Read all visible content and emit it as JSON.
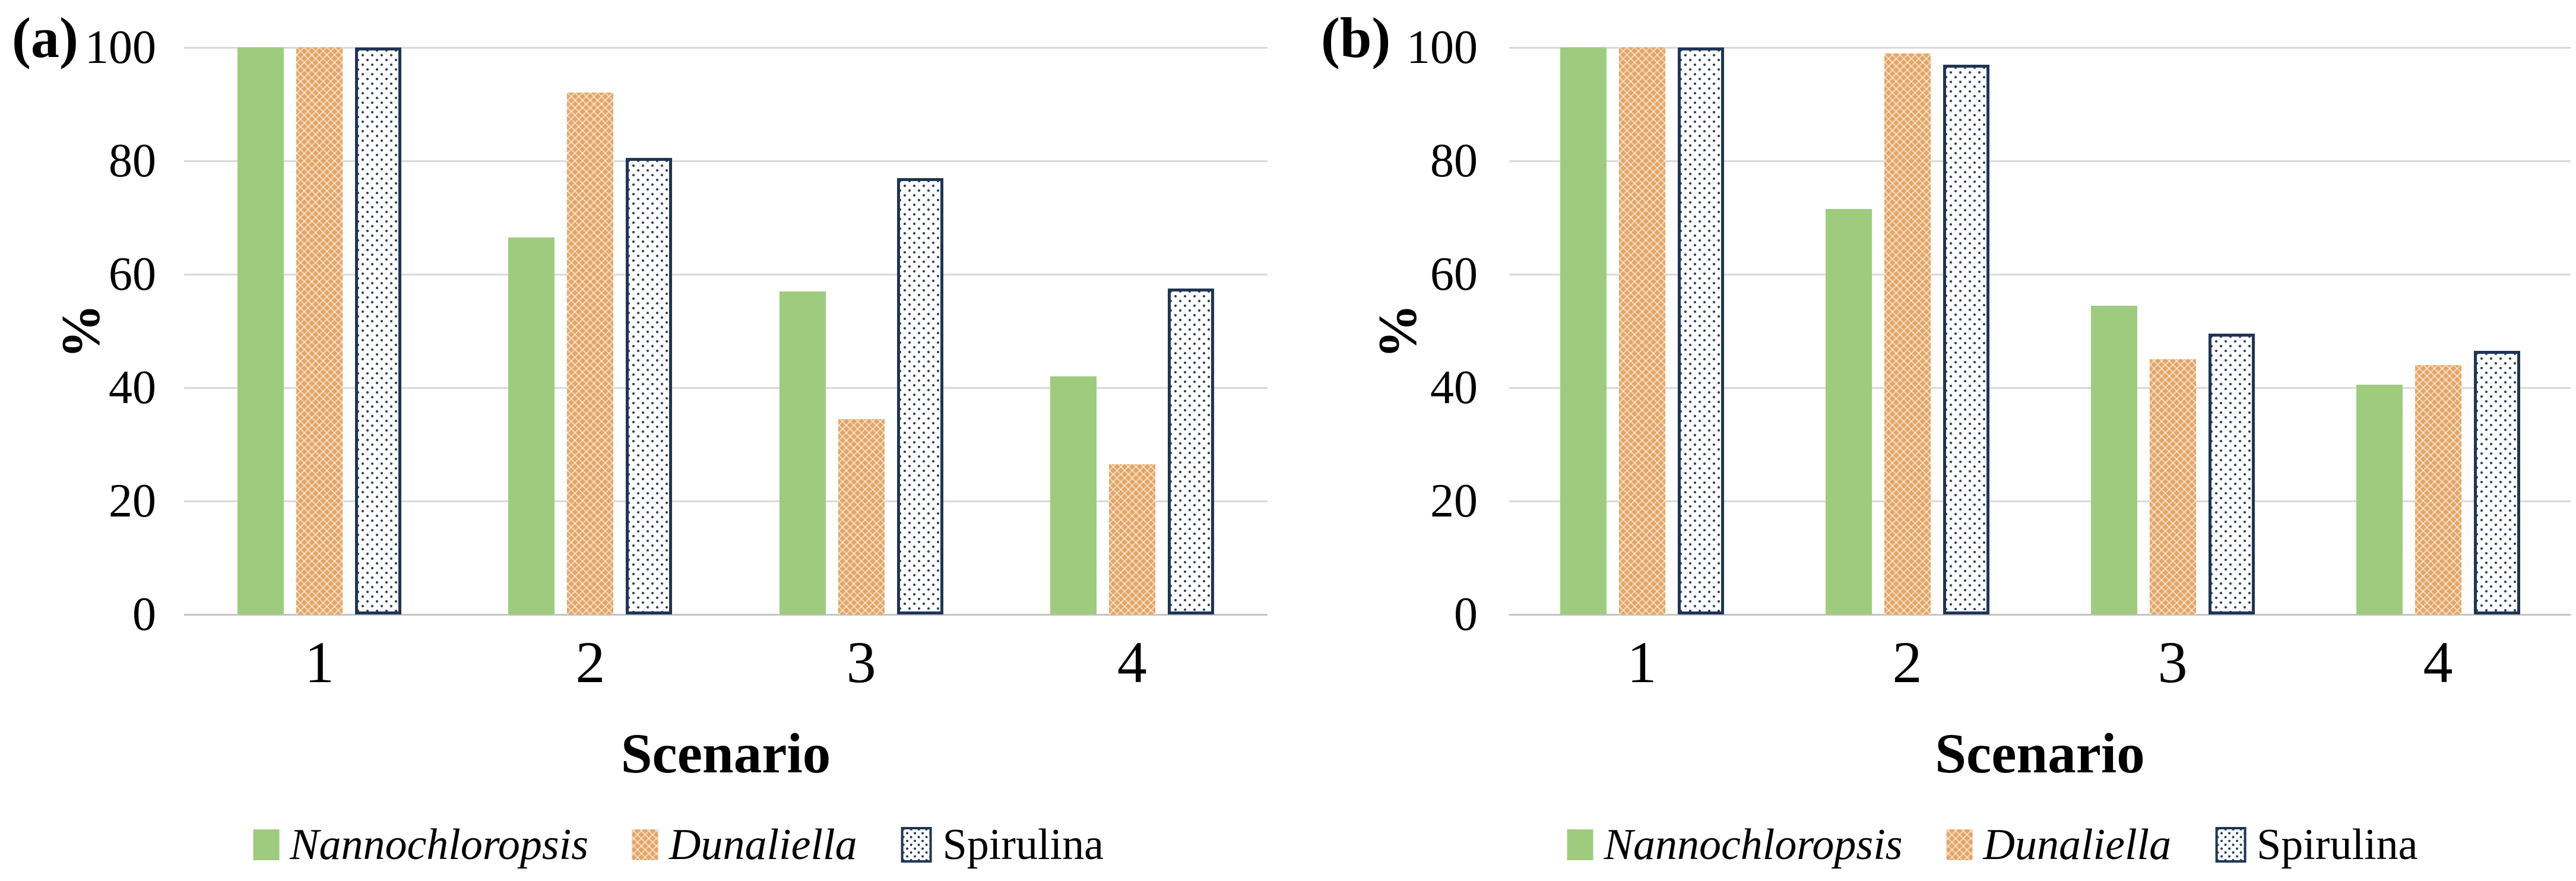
{
  "colors": {
    "nannochloropsis_green": "#9FCB7E",
    "dunaliella_orange": "#E4A667",
    "spirulina_navy": "#1F3555",
    "gridline_gray": "#D9D9D9",
    "axis_gray": "#C3C3C3",
    "text": "#000000"
  },
  "chart_data": [
    {
      "type": "bar",
      "panel_label": "(a)",
      "title": "",
      "xlabel": "Scenario",
      "ylabel": "%",
      "ylim": [
        0,
        100
      ],
      "ytick_step": 20,
      "yticks": [
        "0",
        "20",
        "40",
        "60",
        "80",
        "100"
      ],
      "categories": [
        "1",
        "2",
        "3",
        "4"
      ],
      "grid": true,
      "legend_position": "bottom",
      "series": [
        {
          "name": "Nannochloropsis",
          "style": "green-solid",
          "italic": true,
          "values": [
            100,
            66.5,
            57,
            42
          ]
        },
        {
          "name": "Dunaliella",
          "style": "orange-lattice",
          "italic": true,
          "values": [
            100,
            92,
            34.5,
            26.5
          ]
        },
        {
          "name": "Spirulina",
          "style": "white-dotted",
          "italic": false,
          "values": [
            100,
            80.5,
            77,
            57.5
          ]
        }
      ]
    },
    {
      "type": "bar",
      "panel_label": "(b)",
      "title": "",
      "xlabel": "Scenario",
      "ylabel": "%",
      "ylim": [
        0,
        100
      ],
      "ytick_step": 20,
      "yticks": [
        "0",
        "20",
        "40",
        "60",
        "80",
        "100"
      ],
      "categories": [
        "1",
        "2",
        "3",
        "4"
      ],
      "grid": true,
      "legend_position": "bottom",
      "series": [
        {
          "name": "Nannochloropsis",
          "style": "green-solid",
          "italic": true,
          "values": [
            100,
            71.5,
            54.5,
            40.5
          ]
        },
        {
          "name": "Dunaliella",
          "style": "orange-lattice",
          "italic": true,
          "values": [
            100,
            99,
            45,
            44
          ]
        },
        {
          "name": "Spirulina",
          "style": "white-dotted",
          "italic": false,
          "values": [
            100,
            97,
            49.5,
            46.5
          ]
        }
      ]
    }
  ]
}
